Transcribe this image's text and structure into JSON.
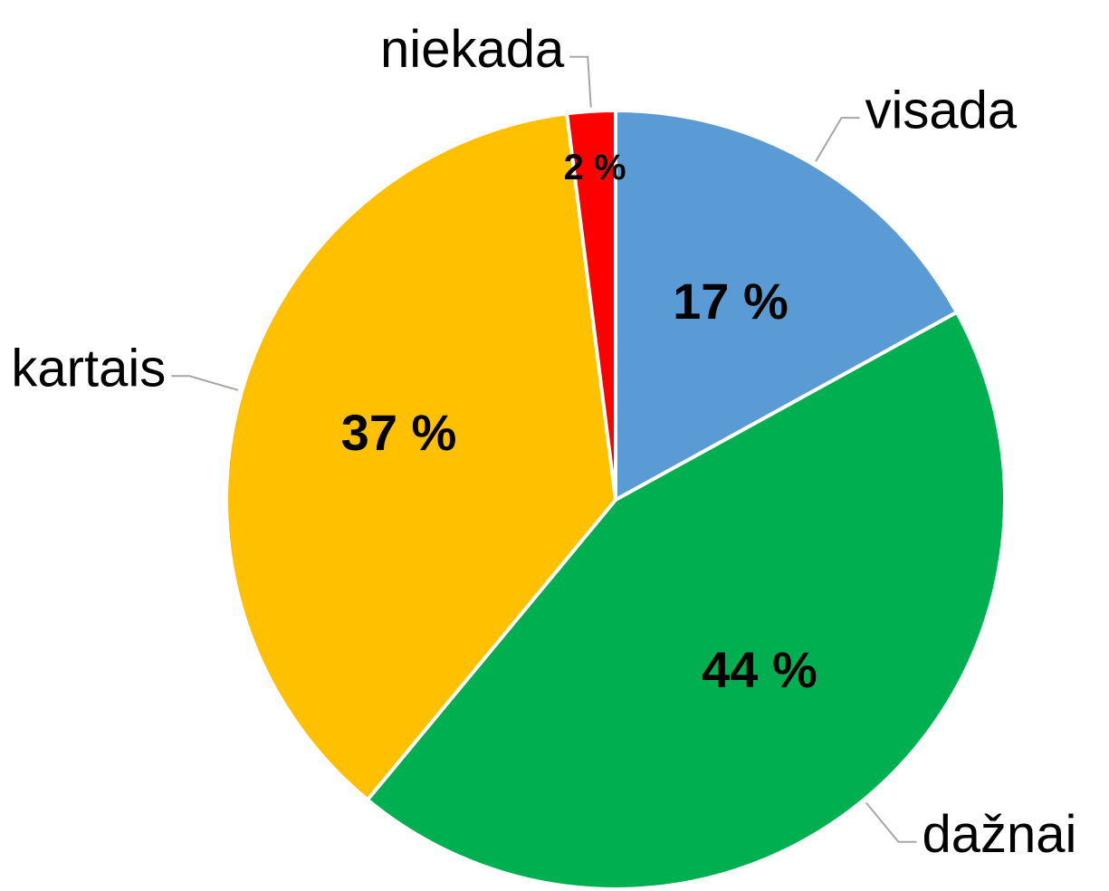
{
  "chart_data": {
    "type": "pie",
    "categories": [
      "visada",
      "dažnai",
      "kartais",
      "niekada"
    ],
    "values": [
      17,
      44,
      37,
      2
    ],
    "value_labels": [
      "17 %",
      "44 %",
      "37 %",
      "2 %"
    ],
    "colors": [
      "#5b9bd5",
      "#00b050",
      "#ffc000",
      "#ff0000"
    ]
  }
}
